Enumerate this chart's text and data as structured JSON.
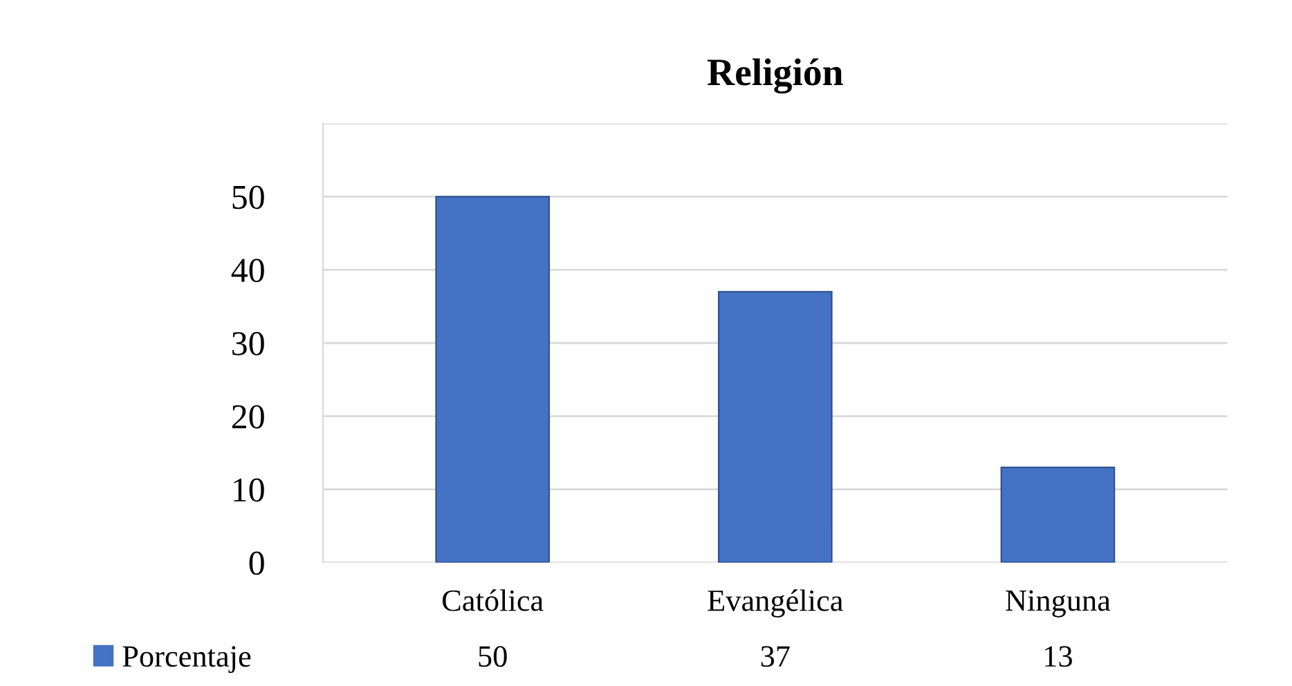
{
  "chart_data": {
    "type": "bar",
    "title": "Religión",
    "categories": [
      "Católica",
      "Evangélica",
      "Ninguna"
    ],
    "series": [
      {
        "name": "Porcentaje",
        "color": "#4472c4",
        "values": [
          50,
          37,
          13
        ]
      }
    ],
    "ylim": [
      0,
      60
    ],
    "yticks": [
      0,
      10,
      20,
      30,
      40,
      50,
      {
        "value": 60,
        "label": null
      }
    ],
    "grid": "y",
    "legend": "bottom",
    "data_labels": true
  }
}
